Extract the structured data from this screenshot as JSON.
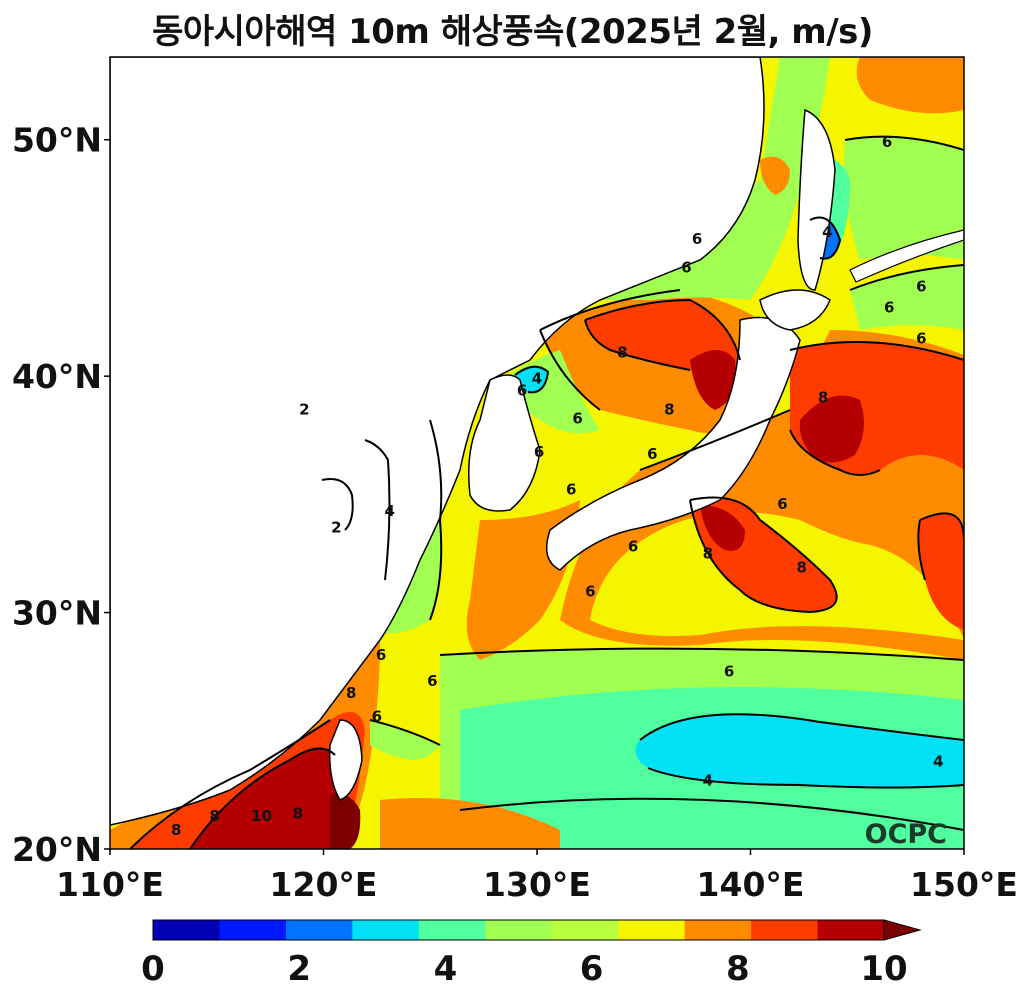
{
  "title": "동아시아해역 10m 해상풍속(2025년 2월, m/s)",
  "watermark": "OCPC",
  "map": {
    "lon_range": [
      110,
      150
    ],
    "lat_range": [
      20,
      53.5
    ],
    "x_ticks": [
      {
        "value": 110,
        "label": "110°E"
      },
      {
        "value": 120,
        "label": "120°E"
      },
      {
        "value": 130,
        "label": "130°E"
      },
      {
        "value": 140,
        "label": "140°E"
      },
      {
        "value": 150,
        "label": "150°E"
      }
    ],
    "y_ticks": [
      {
        "value": 20,
        "label": "20°N"
      },
      {
        "value": 30,
        "label": "30°N"
      },
      {
        "value": 40,
        "label": "40°N"
      },
      {
        "value": 50,
        "label": "50°N"
      }
    ],
    "contour_labels": [
      {
        "text": "2",
        "lon": 120.6,
        "lat": 33.6
      },
      {
        "text": "2",
        "lon": 119.1,
        "lat": 38.6
      },
      {
        "text": "4",
        "lon": 123.1,
        "lat": 34.3
      },
      {
        "text": "4",
        "lon": 130.0,
        "lat": 39.9
      },
      {
        "text": "4",
        "lon": 138.0,
        "lat": 22.9
      },
      {
        "text": "4",
        "lon": 148.8,
        "lat": 23.7
      },
      {
        "text": "4",
        "lon": 143.6,
        "lat": 46.1
      },
      {
        "text": "6",
        "lon": 122.7,
        "lat": 28.2
      },
      {
        "text": "6",
        "lon": 125.1,
        "lat": 27.1
      },
      {
        "text": "6",
        "lon": 122.5,
        "lat": 25.6
      },
      {
        "text": "6",
        "lon": 139.0,
        "lat": 27.5
      },
      {
        "text": "6",
        "lon": 131.9,
        "lat": 38.2
      },
      {
        "text": "6",
        "lon": 129.3,
        "lat": 39.4
      },
      {
        "text": "6",
        "lon": 130.1,
        "lat": 36.8
      },
      {
        "text": "6",
        "lon": 135.4,
        "lat": 36.7
      },
      {
        "text": "6",
        "lon": 134.5,
        "lat": 32.8
      },
      {
        "text": "6",
        "lon": 132.5,
        "lat": 30.9
      },
      {
        "text": "6",
        "lon": 131.6,
        "lat": 35.2
      },
      {
        "text": "6",
        "lon": 137.5,
        "lat": 45.8
      },
      {
        "text": "6",
        "lon": 137.0,
        "lat": 44.6
      },
      {
        "text": "6",
        "lon": 141.5,
        "lat": 34.6
      },
      {
        "text": "6",
        "lon": 146.4,
        "lat": 49.9
      },
      {
        "text": "6",
        "lon": 146.5,
        "lat": 42.9
      },
      {
        "text": "6",
        "lon": 148.0,
        "lat": 43.8
      },
      {
        "text": "6",
        "lon": 148.0,
        "lat": 41.6
      },
      {
        "text": "8",
        "lon": 134.0,
        "lat": 41.0
      },
      {
        "text": "8",
        "lon": 136.2,
        "lat": 38.6
      },
      {
        "text": "8",
        "lon": 143.4,
        "lat": 39.1
      },
      {
        "text": "8",
        "lon": 138.0,
        "lat": 32.5
      },
      {
        "text": "8",
        "lon": 142.4,
        "lat": 31.9
      },
      {
        "text": "8",
        "lon": 121.3,
        "lat": 26.6
      },
      {
        "text": "8",
        "lon": 114.9,
        "lat": 21.4
      },
      {
        "text": "8",
        "lon": 113.1,
        "lat": 20.8
      },
      {
        "text": "8",
        "lon": 118.8,
        "lat": 21.5
      },
      {
        "text": "10",
        "lon": 117.1,
        "lat": 21.4
      }
    ]
  },
  "colorbar": {
    "colors": [
      "#0000b4",
      "#0019ff",
      "#0073ff",
      "#00e1f5",
      "#50ff9e",
      "#a0ff50",
      "#b8ff40",
      "#f5f500",
      "#ff8c00",
      "#ff3c00",
      "#b40000"
    ],
    "extend_color": "#7c0000",
    "ticks": [
      {
        "value": 0,
        "label": "0"
      },
      {
        "value": 2,
        "label": "2"
      },
      {
        "value": 4,
        "label": "4"
      },
      {
        "value": 6,
        "label": "6"
      },
      {
        "value": 8,
        "label": "8"
      },
      {
        "value": 10,
        "label": "10"
      }
    ]
  }
}
